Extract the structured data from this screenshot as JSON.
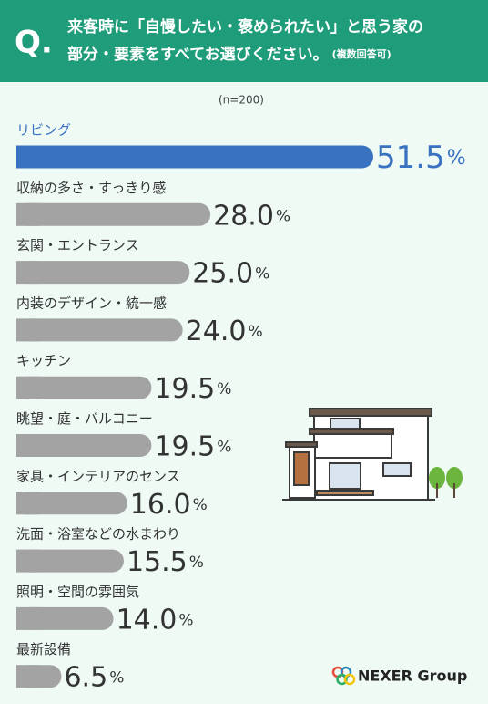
{
  "chart_data": {
    "type": "bar",
    "orientation": "horizontal",
    "question_mark": "Q.",
    "title": [
      "来客時に「自慢したい・褒められたい」と思う家の",
      "部分・要素をすべてお選びください。"
    ],
    "title_note": "(複数回答可)",
    "sample": "(n=200)",
    "categories": [
      "リビング",
      "収納の多さ・すっきり感",
      "玄関・エントランス",
      "内装のデザイン・統一感",
      "キッチン",
      "眺望・庭・バルコニー",
      "家具・インテリアのセンス",
      "洗面・浴室などの水まわり",
      "照明・空間の雰囲気",
      "最新設備"
    ],
    "values": [
      51.5,
      28.0,
      25.0,
      24.0,
      19.5,
      19.5,
      16.0,
      15.5,
      14.0,
      6.5
    ],
    "value_labels": [
      "51.5",
      "28.0",
      "25.0",
      "24.0",
      "19.5",
      "19.5",
      "16.0",
      "15.5",
      "14.0",
      "6.5"
    ],
    "value_unit": "%",
    "colors": [
      "#3a72c2",
      "#a3a3a3",
      "#a3a3a3",
      "#a3a3a3",
      "#a3a3a3",
      "#a3a3a3",
      "#a3a3a3",
      "#a3a3a3",
      "#a3a3a3",
      "#a3a3a3"
    ],
    "logo": "NEXER Group"
  }
}
